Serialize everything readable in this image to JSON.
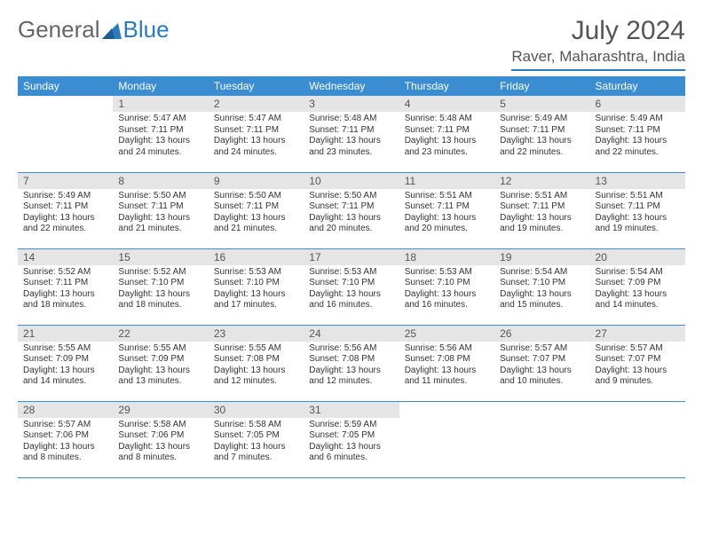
{
  "logo": {
    "general": "General",
    "blue": "Blue"
  },
  "month_title": "July 2024",
  "location": "Raver, Maharashtra, India",
  "colors": {
    "header_bg": "#3a8dd0",
    "header_text": "#ffffff",
    "daynum_bg": "#e5e5e5",
    "border": "#3a8dd0",
    "logo_accent": "#2b7bbf",
    "body_text": "#333333"
  },
  "weekdays": [
    "Sunday",
    "Monday",
    "Tuesday",
    "Wednesday",
    "Thursday",
    "Friday",
    "Saturday"
  ],
  "weeks": [
    [
      null,
      {
        "n": "1",
        "rise": "5:47 AM",
        "set": "7:11 PM",
        "dl": "13 hours and 24 minutes."
      },
      {
        "n": "2",
        "rise": "5:47 AM",
        "set": "7:11 PM",
        "dl": "13 hours and 24 minutes."
      },
      {
        "n": "3",
        "rise": "5:48 AM",
        "set": "7:11 PM",
        "dl": "13 hours and 23 minutes."
      },
      {
        "n": "4",
        "rise": "5:48 AM",
        "set": "7:11 PM",
        "dl": "13 hours and 23 minutes."
      },
      {
        "n": "5",
        "rise": "5:49 AM",
        "set": "7:11 PM",
        "dl": "13 hours and 22 minutes."
      },
      {
        "n": "6",
        "rise": "5:49 AM",
        "set": "7:11 PM",
        "dl": "13 hours and 22 minutes."
      }
    ],
    [
      {
        "n": "7",
        "rise": "5:49 AM",
        "set": "7:11 PM",
        "dl": "13 hours and 22 minutes."
      },
      {
        "n": "8",
        "rise": "5:50 AM",
        "set": "7:11 PM",
        "dl": "13 hours and 21 minutes."
      },
      {
        "n": "9",
        "rise": "5:50 AM",
        "set": "7:11 PM",
        "dl": "13 hours and 21 minutes."
      },
      {
        "n": "10",
        "rise": "5:50 AM",
        "set": "7:11 PM",
        "dl": "13 hours and 20 minutes."
      },
      {
        "n": "11",
        "rise": "5:51 AM",
        "set": "7:11 PM",
        "dl": "13 hours and 20 minutes."
      },
      {
        "n": "12",
        "rise": "5:51 AM",
        "set": "7:11 PM",
        "dl": "13 hours and 19 minutes."
      },
      {
        "n": "13",
        "rise": "5:51 AM",
        "set": "7:11 PM",
        "dl": "13 hours and 19 minutes."
      }
    ],
    [
      {
        "n": "14",
        "rise": "5:52 AM",
        "set": "7:11 PM",
        "dl": "13 hours and 18 minutes."
      },
      {
        "n": "15",
        "rise": "5:52 AM",
        "set": "7:10 PM",
        "dl": "13 hours and 18 minutes."
      },
      {
        "n": "16",
        "rise": "5:53 AM",
        "set": "7:10 PM",
        "dl": "13 hours and 17 minutes."
      },
      {
        "n": "17",
        "rise": "5:53 AM",
        "set": "7:10 PM",
        "dl": "13 hours and 16 minutes."
      },
      {
        "n": "18",
        "rise": "5:53 AM",
        "set": "7:10 PM",
        "dl": "13 hours and 16 minutes."
      },
      {
        "n": "19",
        "rise": "5:54 AM",
        "set": "7:10 PM",
        "dl": "13 hours and 15 minutes."
      },
      {
        "n": "20",
        "rise": "5:54 AM",
        "set": "7:09 PM",
        "dl": "13 hours and 14 minutes."
      }
    ],
    [
      {
        "n": "21",
        "rise": "5:55 AM",
        "set": "7:09 PM",
        "dl": "13 hours and 14 minutes."
      },
      {
        "n": "22",
        "rise": "5:55 AM",
        "set": "7:09 PM",
        "dl": "13 hours and 13 minutes."
      },
      {
        "n": "23",
        "rise": "5:55 AM",
        "set": "7:08 PM",
        "dl": "13 hours and 12 minutes."
      },
      {
        "n": "24",
        "rise": "5:56 AM",
        "set": "7:08 PM",
        "dl": "13 hours and 12 minutes."
      },
      {
        "n": "25",
        "rise": "5:56 AM",
        "set": "7:08 PM",
        "dl": "13 hours and 11 minutes."
      },
      {
        "n": "26",
        "rise": "5:57 AM",
        "set": "7:07 PM",
        "dl": "13 hours and 10 minutes."
      },
      {
        "n": "27",
        "rise": "5:57 AM",
        "set": "7:07 PM",
        "dl": "13 hours and 9 minutes."
      }
    ],
    [
      {
        "n": "28",
        "rise": "5:57 AM",
        "set": "7:06 PM",
        "dl": "13 hours and 8 minutes."
      },
      {
        "n": "29",
        "rise": "5:58 AM",
        "set": "7:06 PM",
        "dl": "13 hours and 8 minutes."
      },
      {
        "n": "30",
        "rise": "5:58 AM",
        "set": "7:05 PM",
        "dl": "13 hours and 7 minutes."
      },
      {
        "n": "31",
        "rise": "5:59 AM",
        "set": "7:05 PM",
        "dl": "13 hours and 6 minutes."
      },
      null,
      null,
      null
    ]
  ],
  "labels": {
    "sunrise": "Sunrise:",
    "sunset": "Sunset:",
    "daylight": "Daylight:"
  }
}
